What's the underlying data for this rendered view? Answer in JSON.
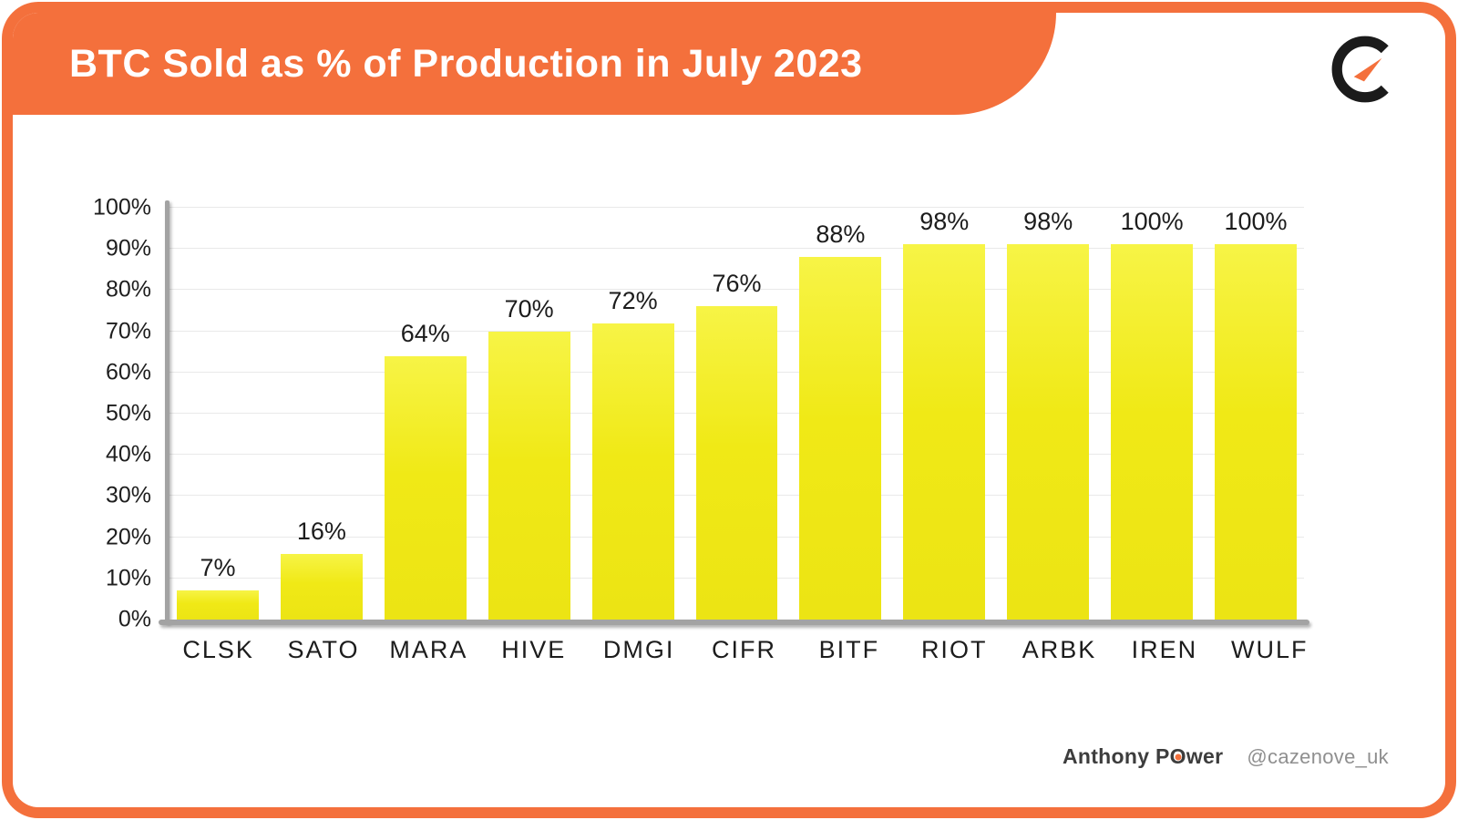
{
  "header": {
    "title": "BTC Sold as % of Production in July 2023"
  },
  "logo": {
    "name": "cazenove-c-logo"
  },
  "chart_data": {
    "type": "bar",
    "title": "BTC Sold as % of Production in July 2023",
    "categories": [
      "CLSK",
      "SATO",
      "MARA",
      "HIVE",
      "DMGI",
      "CIFR",
      "BITF",
      "RIOT",
      "ARBK",
      "IREN",
      "WULF"
    ],
    "values": [
      7,
      16,
      64,
      70,
      72,
      76,
      88,
      98,
      98,
      100,
      100
    ],
    "value_labels": [
      "7%",
      "16%",
      "64%",
      "70%",
      "72%",
      "76%",
      "88%",
      "98%",
      "98%",
      "100%",
      "100%"
    ],
    "xlabel": "",
    "ylabel": "",
    "ylim": [
      0,
      100
    ],
    "ytick_labels": [
      "0%",
      "10%",
      "20%",
      "30%",
      "40%",
      "50%",
      "60%",
      "70%",
      "80%",
      "90%",
      "100%"
    ],
    "grid": true,
    "legend": false,
    "bar_color": "#f0e916",
    "accent_color": "#F4703C"
  },
  "footer": {
    "author_pre": "Anthony P",
    "author_o": "O",
    "author_post": "wer",
    "handle": "@cazenove_uk"
  }
}
